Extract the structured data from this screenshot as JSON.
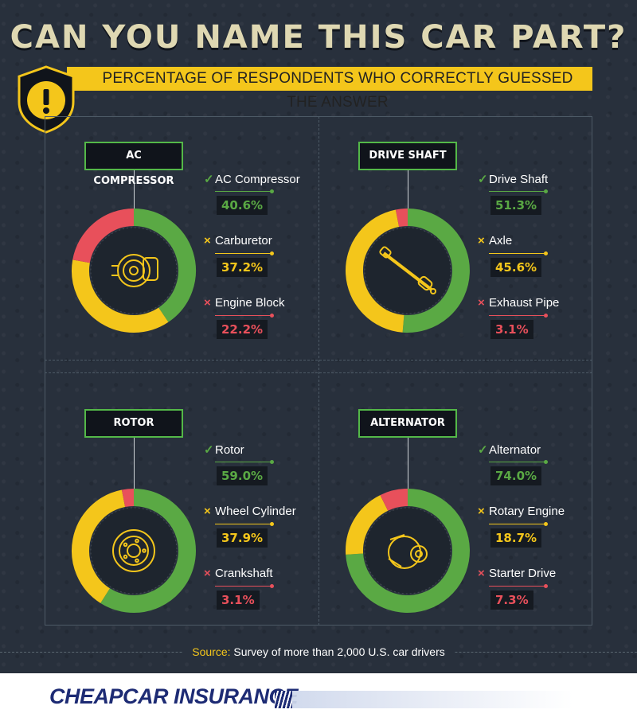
{
  "header": {
    "title": "CAN YOU NAME THIS CAR PART?",
    "subtitle": "PERCENTAGE OF RESPONDENTS WHO CORRECTLY GUESSED THE ANSWER"
  },
  "colors": {
    "correct": "#5aa944",
    "wrong_yellow": "#f4c61b",
    "wrong_red": "#e8505b",
    "accent": "#f4c61b",
    "background": "#28303c"
  },
  "chart_data": [
    {
      "type": "pie",
      "title": "AC COMPRESSOR",
      "icon": "ac-compressor-icon",
      "categories": [
        "AC Compressor",
        "Carburetor",
        "Engine Block"
      ],
      "values": [
        40.6,
        37.2,
        22.2
      ],
      "labels": [
        "40.6%",
        "37.2%",
        "22.2%"
      ],
      "marks": [
        "✓",
        "×",
        "×"
      ],
      "status": [
        "correct",
        "wrong",
        "wrong"
      ],
      "colors": [
        "#5aa944",
        "#f4c61b",
        "#e8505b"
      ]
    },
    {
      "type": "pie",
      "title": "DRIVE SHAFT",
      "icon": "drive-shaft-icon",
      "categories": [
        "Drive Shaft",
        "Axle",
        "Exhaust Pipe"
      ],
      "values": [
        51.3,
        45.6,
        3.1
      ],
      "labels": [
        "51.3%",
        "45.6%",
        "3.1%"
      ],
      "marks": [
        "✓",
        "×",
        "×"
      ],
      "status": [
        "correct",
        "wrong",
        "wrong"
      ],
      "colors": [
        "#5aa944",
        "#f4c61b",
        "#e8505b"
      ]
    },
    {
      "type": "pie",
      "title": "ROTOR",
      "icon": "rotor-icon",
      "categories": [
        "Rotor",
        "Wheel Cylinder",
        "Crankshaft"
      ],
      "values": [
        59.0,
        37.9,
        3.1
      ],
      "labels": [
        "59.0%",
        "37.9%",
        "3.1%"
      ],
      "marks": [
        "✓",
        "×",
        "×"
      ],
      "status": [
        "correct",
        "wrong",
        "wrong"
      ],
      "colors": [
        "#5aa944",
        "#f4c61b",
        "#e8505b"
      ]
    },
    {
      "type": "pie",
      "title": "ALTERNATOR",
      "icon": "alternator-icon",
      "categories": [
        "Alternator",
        "Rotary Engine",
        "Starter Drive"
      ],
      "values": [
        74.0,
        18.7,
        7.3
      ],
      "labels": [
        "74.0%",
        "18.7%",
        "7.3%"
      ],
      "marks": [
        "✓",
        "×",
        "×"
      ],
      "status": [
        "correct",
        "wrong",
        "wrong"
      ],
      "colors": [
        "#5aa944",
        "#f4c61b",
        "#e8505b"
      ]
    }
  ],
  "footer": {
    "source_label": "Source:",
    "source_text": "Survey of more than 2,000 U.S. car drivers",
    "logo_text": "CHEAPCARINSURANCE",
    "badge_icon": "exclamation-icon"
  }
}
